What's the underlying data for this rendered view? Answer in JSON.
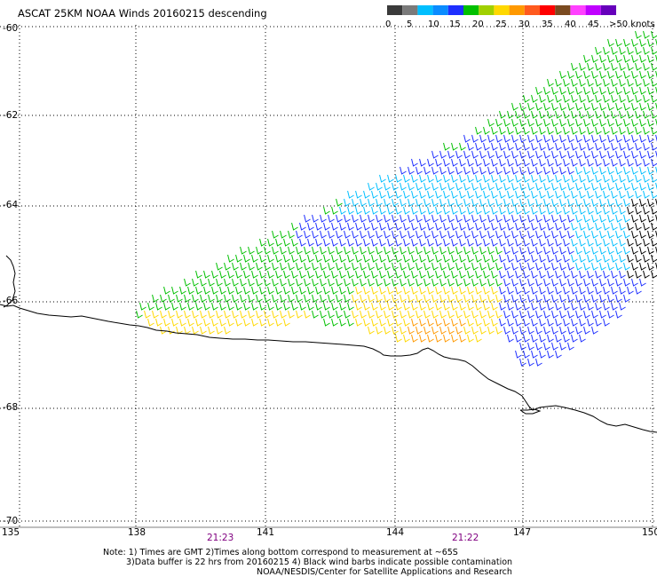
{
  "title": "ASCAT 25KM NOAA Winds 20160215 descending",
  "legend": {
    "colors": [
      "#3a3a3a",
      "#7a7a7a",
      "#00bfff",
      "#0a8cff",
      "#1e2fff",
      "#00c000",
      "#a0d000",
      "#ffd800",
      "#ff9900",
      "#ff5a1e",
      "#ff0000",
      "#7a4a20",
      "#ff40ff",
      "#c000ff",
      "#6600bb"
    ],
    "labels": [
      "0",
      "5",
      "10",
      "15",
      "20",
      "25",
      "30",
      "35",
      "40",
      "45",
      ">50 knots"
    ]
  },
  "axes": {
    "lat_labels": [
      "-60",
      "-62",
      "-64",
      "-66",
      "-68",
      "-70"
    ],
    "lon_labels": [
      "135",
      "138",
      "141",
      "144",
      "147",
      "150"
    ]
  },
  "pass_times": [
    {
      "label": "21:23",
      "color": "#800080"
    },
    {
      "label": "21:22",
      "color": "#800080"
    }
  ],
  "notes": {
    "line1": "Note: 1) Times are GMT 2)Times along bottom correspond to measurement at ~65S",
    "line2": "3)Data buffer is 22 hrs from 20160215 4) Black wind barbs indicate possible contamination",
    "line3": "NOAA/NESDIS/Center for Satellite Applications and Research"
  },
  "barb_colors": {
    "blue": "#1e2fff",
    "light_blue": "#00bfff",
    "green": "#00c000",
    "yellow": "#ffd800",
    "orange": "#ff9900",
    "black": "#000000"
  }
}
